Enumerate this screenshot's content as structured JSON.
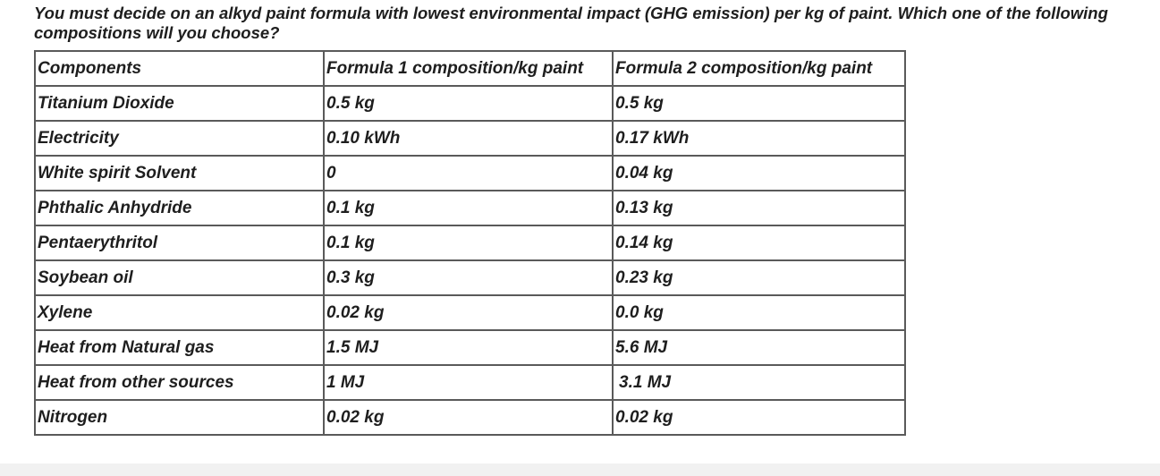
{
  "question": "You must decide on an alkyd paint formula with lowest environmental impact (GHG emission) per kg of paint. Which one of the following compositions will you choose?",
  "table": {
    "header": [
      "Components",
      "Formula 1 composition/kg paint",
      "Formula 2 composition/kg paint"
    ],
    "rows": [
      [
        "Titanium Dioxide",
        "0.5 kg",
        "0.5 kg"
      ],
      [
        "Electricity",
        "0.10 kWh",
        "0.17 kWh"
      ],
      [
        "White spirit Solvent",
        "0",
        "0.04 kg"
      ],
      [
        "Phthalic Anhydride",
        "0.1 kg",
        "0.13 kg"
      ],
      [
        "Pentaerythritol",
        "0.1 kg",
        "0.14 kg"
      ],
      [
        "Soybean oil",
        "0.3 kg",
        "0.23 kg"
      ],
      [
        "Xylene",
        "0.02 kg",
        "0.0 kg"
      ],
      [
        "Heat from Natural gas",
        "1.5 MJ",
        "5.6 MJ"
      ],
      [
        "Heat from other sources",
        "1 MJ",
        "3.1 MJ"
      ],
      [
        "Nitrogen",
        "0.02 kg",
        "0.02 kg"
      ]
    ]
  }
}
